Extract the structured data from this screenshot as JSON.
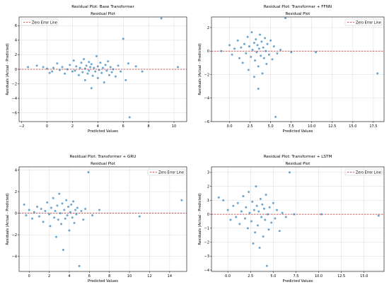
{
  "colors": {
    "point": "#1f77b4",
    "zero_line": "#d62728",
    "grid": "#d9d9d9",
    "axis": "#000000"
  },
  "chart_data": [
    {
      "type": "scatter",
      "suptitle": "Residual Plot: Base Transformer",
      "title": "Residual Plot",
      "xlabel": "Predicted Values",
      "ylabel": "Residuals (Actual - Predicted)",
      "xlim": [
        -2.2,
        11.0
      ],
      "ylim": [
        -7.2,
        7.2
      ],
      "xticks": [
        -2,
        0,
        2,
        4,
        6,
        8,
        10
      ],
      "yticks": [
        -6,
        -4,
        -2,
        0,
        2,
        4,
        6
      ],
      "xtick_labels": [
        "−2",
        "0",
        "2",
        "4",
        "6",
        "8",
        "10"
      ],
      "ytick_labels": [
        "−6",
        "−4",
        "−2",
        "0",
        "2",
        "4",
        "6"
      ],
      "grid": true,
      "legend": {
        "label": "Zero Error Line",
        "position": "top-left"
      },
      "reference_line_y": 0,
      "points": [
        [
          -1.5,
          0.3
        ],
        [
          -0.8,
          0.5
        ],
        [
          -0.3,
          0.3
        ],
        [
          0.0,
          0.1
        ],
        [
          0.2,
          -0.5
        ],
        [
          0.4,
          -0.3
        ],
        [
          0.5,
          0.2
        ],
        [
          0.8,
          0.8
        ],
        [
          1.0,
          -0.1
        ],
        [
          1.2,
          0.3
        ],
        [
          1.4,
          -0.6
        ],
        [
          1.6,
          0.0
        ],
        [
          1.8,
          0.6
        ],
        [
          2.0,
          -0.3
        ],
        [
          2.1,
          1.2
        ],
        [
          2.2,
          -0.2
        ],
        [
          2.3,
          0.4
        ],
        [
          2.5,
          -0.8
        ],
        [
          2.6,
          0.2
        ],
        [
          2.7,
          0.9
        ],
        [
          2.8,
          -0.4
        ],
        [
          2.9,
          1.4
        ],
        [
          3.0,
          0.1
        ],
        [
          3.0,
          -1.5
        ],
        [
          3.1,
          0.5
        ],
        [
          3.2,
          -0.6
        ],
        [
          3.3,
          1.0
        ],
        [
          3.3,
          -0.2
        ],
        [
          3.4,
          0.3
        ],
        [
          3.5,
          -2.6
        ],
        [
          3.5,
          0.7
        ],
        [
          3.6,
          -0.9
        ],
        [
          3.7,
          0.2
        ],
        [
          3.8,
          -0.3
        ],
        [
          3.9,
          1.8
        ],
        [
          4.0,
          -1.2
        ],
        [
          4.0,
          0.4
        ],
        [
          4.1,
          -0.1
        ],
        [
          4.2,
          0.9
        ],
        [
          4.3,
          -0.5
        ],
        [
          4.4,
          0.2
        ],
        [
          4.5,
          -1.8
        ],
        [
          4.6,
          0.6
        ],
        [
          4.7,
          -0.2
        ],
        [
          4.8,
          1.1
        ],
        [
          4.9,
          -0.8
        ],
        [
          5.0,
          0.3
        ],
        [
          5.1,
          -0.4
        ],
        [
          5.2,
          0.0
        ],
        [
          5.4,
          -1.0
        ],
        [
          5.6,
          0.5
        ],
        [
          5.8,
          -0.3
        ],
        [
          6.0,
          4.2
        ],
        [
          6.2,
          -1.5
        ],
        [
          6.4,
          0.8
        ],
        [
          6.5,
          -6.6
        ],
        [
          7.0,
          0.4
        ],
        [
          7.5,
          -0.3
        ],
        [
          9.0,
          7.0
        ],
        [
          10.3,
          0.3
        ]
      ]
    },
    {
      "type": "scatter",
      "suptitle": "Residual Plot: Transformer + FFNN",
      "title": "Residual Plot",
      "xlabel": "Predicted Values",
      "ylabel": "Residuals (Actual - Predicted)",
      "xlim": [
        -2.2,
        18.8
      ],
      "ylim": [
        -6.0,
        2.9
      ],
      "xticks": [
        0.0,
        2.5,
        5.0,
        7.5,
        10.0,
        12.5,
        15.0,
        17.5
      ],
      "yticks": [
        -6,
        -4,
        -2,
        0,
        2
      ],
      "xtick_labels": [
        "0.0",
        "2.5",
        "5.0",
        "7.5",
        "10.0",
        "12.5",
        "15.0",
        "17.5"
      ],
      "ytick_labels": [
        "−6",
        "−4",
        "−2",
        "0",
        "2"
      ],
      "grid": true,
      "legend": {
        "label": "Zero Error Line",
        "position": "top-right"
      },
      "reference_line_y": 0,
      "points": [
        [
          -1.0,
          0.0
        ],
        [
          0.0,
          0.5
        ],
        [
          0.3,
          -0.3
        ],
        [
          0.6,
          0.2
        ],
        [
          1.0,
          0.9
        ],
        [
          1.2,
          -0.6
        ],
        [
          1.4,
          0.3
        ],
        [
          1.6,
          -1.0
        ],
        [
          1.8,
          0.6
        ],
        [
          2.0,
          -0.2
        ],
        [
          2.2,
          1.2
        ],
        [
          2.3,
          -1.6
        ],
        [
          2.4,
          0.4
        ],
        [
          2.6,
          -0.5
        ],
        [
          2.7,
          1.6
        ],
        [
          2.8,
          0.1
        ],
        [
          3.0,
          -2.2
        ],
        [
          3.0,
          0.7
        ],
        [
          3.1,
          -0.8
        ],
        [
          3.2,
          1.0
        ],
        [
          3.3,
          -0.1
        ],
        [
          3.4,
          0.5
        ],
        [
          3.5,
          -3.2
        ],
        [
          3.5,
          -1.3
        ],
        [
          3.6,
          0.2
        ],
        [
          3.7,
          1.4
        ],
        [
          3.8,
          -0.4
        ],
        [
          3.9,
          0.8
        ],
        [
          4.0,
          -1.9
        ],
        [
          4.1,
          0.3
        ],
        [
          4.2,
          -0.6
        ],
        [
          4.3,
          1.1
        ],
        [
          4.4,
          0.0
        ],
        [
          4.5,
          -1.1
        ],
        [
          4.6,
          0.6
        ],
        [
          4.8,
          -0.3
        ],
        [
          5.0,
          0.9
        ],
        [
          5.2,
          -0.7
        ],
        [
          5.4,
          0.4
        ],
        [
          5.6,
          -5.6
        ],
        [
          5.8,
          -0.2
        ],
        [
          6.2,
          0.1
        ],
        [
          6.8,
          2.8
        ],
        [
          7.5,
          -0.1
        ],
        [
          10.5,
          -0.1
        ],
        [
          18.0,
          -1.9
        ]
      ]
    },
    {
      "type": "scatter",
      "suptitle": "Residual Plot: Transformer + GRU",
      "title": "Residual Plot",
      "xlabel": "Predicted Values",
      "ylabel": "Residuals (Actual - Predicted)",
      "xlim": [
        -1.0,
        15.7
      ],
      "ylim": [
        -5.4,
        4.3
      ],
      "xticks": [
        0,
        2,
        4,
        6,
        8,
        10,
        12,
        14
      ],
      "yticks": [
        -4,
        -2,
        0,
        2,
        4
      ],
      "xtick_labels": [
        "0",
        "2",
        "4",
        "6",
        "8",
        "10",
        "12",
        "14"
      ],
      "ytick_labels": [
        "−4",
        "−2",
        "0",
        "2",
        "4"
      ],
      "grid": true,
      "legend": {
        "label": "Zero Error Line",
        "position": "top-right"
      },
      "reference_line_y": 0,
      "points": [
        [
          -0.5,
          0.8
        ],
        [
          -0.3,
          -0.2
        ],
        [
          0.0,
          0.3
        ],
        [
          0.3,
          -0.5
        ],
        [
          0.5,
          0.1
        ],
        [
          0.8,
          0.6
        ],
        [
          1.0,
          -0.3
        ],
        [
          1.2,
          0.4
        ],
        [
          1.4,
          -0.8
        ],
        [
          1.6,
          0.2
        ],
        [
          1.8,
          1.0
        ],
        [
          2.0,
          -0.1
        ],
        [
          2.1,
          -1.2
        ],
        [
          2.2,
          0.5
        ],
        [
          2.4,
          1.4
        ],
        [
          2.5,
          -0.4
        ],
        [
          2.6,
          0.2
        ],
        [
          2.7,
          -2.2
        ],
        [
          2.8,
          0.7
        ],
        [
          2.9,
          -0.6
        ],
        [
          3.0,
          1.8
        ],
        [
          3.1,
          0.0
        ],
        [
          3.2,
          -1.0
        ],
        [
          3.3,
          0.9
        ],
        [
          3.4,
          -3.4
        ],
        [
          3.5,
          0.3
        ],
        [
          3.6,
          -0.5
        ],
        [
          3.7,
          1.2
        ],
        [
          3.8,
          -0.2
        ],
        [
          3.9,
          0.6
        ],
        [
          4.0,
          -1.6
        ],
        [
          4.1,
          0.1
        ],
        [
          4.2,
          0.8
        ],
        [
          4.3,
          -0.4
        ],
        [
          4.4,
          1.1
        ],
        [
          4.5,
          -0.9
        ],
        [
          4.6,
          0.3
        ],
        [
          4.7,
          -0.1
        ],
        [
          4.8,
          0.5
        ],
        [
          5.0,
          -4.9
        ],
        [
          5.2,
          0.2
        ],
        [
          5.4,
          -0.6
        ],
        [
          5.6,
          0.4
        ],
        [
          5.9,
          3.8
        ],
        [
          6.3,
          -0.2
        ],
        [
          7.0,
          0.3
        ],
        [
          11.0,
          -0.3
        ],
        [
          15.2,
          1.2
        ]
      ]
    },
    {
      "type": "scatter",
      "suptitle": "Residual Plot: Transformer + LSTM",
      "title": "Residual Plot",
      "xlabel": "Predicted Values",
      "ylabel": "Residuals (Actual - Predicted)",
      "xlim": [
        -1.8,
        17.2
      ],
      "ylim": [
        -4.1,
        3.4
      ],
      "xticks": [
        0.0,
        2.5,
        5.0,
        7.5,
        10.0,
        12.5,
        15.0
      ],
      "yticks": [
        -4,
        -3,
        -2,
        -1,
        0,
        1,
        2,
        3
      ],
      "xtick_labels": [
        "0.0",
        "2.5",
        "5.0",
        "7.5",
        "10.0",
        "12.5",
        "15.0"
      ],
      "ytick_labels": [
        "−4",
        "−3",
        "−2",
        "−1",
        "0",
        "1",
        "2",
        "3"
      ],
      "grid": true,
      "legend": {
        "label": "Zero Error Line",
        "position": "top-right"
      },
      "reference_line_y": 0,
      "points": [
        [
          -1.0,
          1.2
        ],
        [
          -0.5,
          1.0
        ],
        [
          0.0,
          0.3
        ],
        [
          0.3,
          -0.4
        ],
        [
          0.6,
          0.6
        ],
        [
          0.9,
          -0.2
        ],
        [
          1.1,
          0.8
        ],
        [
          1.3,
          -0.7
        ],
        [
          1.5,
          0.2
        ],
        [
          1.7,
          1.3
        ],
        [
          1.9,
          -0.3
        ],
        [
          2.0,
          0.5
        ],
        [
          2.2,
          -1.0
        ],
        [
          2.3,
          1.6
        ],
        [
          2.4,
          0.1
        ],
        [
          2.6,
          -0.5
        ],
        [
          2.7,
          0.9
        ],
        [
          2.8,
          -2.1
        ],
        [
          2.9,
          0.3
        ],
        [
          3.0,
          -1.3
        ],
        [
          3.1,
          2.0
        ],
        [
          3.2,
          0.6
        ],
        [
          3.3,
          -0.8
        ],
        [
          3.4,
          0.2
        ],
        [
          3.5,
          -2.4
        ],
        [
          3.6,
          1.1
        ],
        [
          3.7,
          -0.2
        ],
        [
          3.8,
          0.7
        ],
        [
          3.9,
          -1.6
        ],
        [
          4.0,
          0.4
        ],
        [
          4.1,
          -0.4
        ],
        [
          4.2,
          1.4
        ],
        [
          4.3,
          -3.7
        ],
        [
          4.4,
          0.0
        ],
        [
          4.5,
          -1.1
        ],
        [
          4.6,
          0.5
        ],
        [
          4.8,
          -0.6
        ],
        [
          5.0,
          0.8
        ],
        [
          5.2,
          -0.3
        ],
        [
          5.4,
          0.3
        ],
        [
          5.7,
          -1.2
        ],
        [
          6.0,
          0.1
        ],
        [
          6.4,
          -0.2
        ],
        [
          6.8,
          3.0
        ],
        [
          7.3,
          0.0
        ],
        [
          10.3,
          0.0
        ],
        [
          16.6,
          -0.1
        ]
      ]
    }
  ]
}
